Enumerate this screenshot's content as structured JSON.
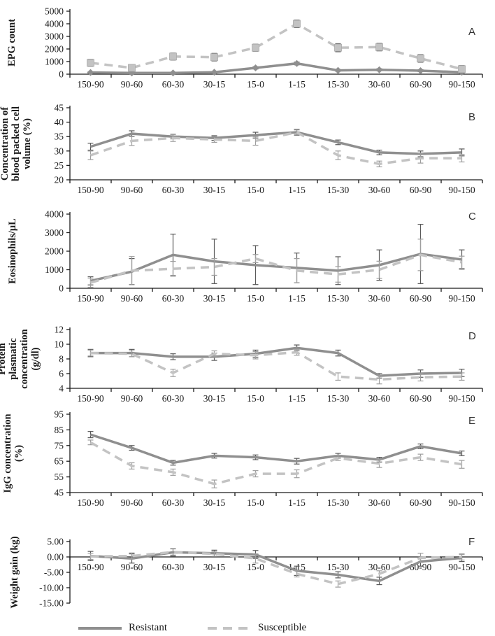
{
  "colors": {
    "resistant": "#8f8f8f",
    "susceptible": "#c3c3c3",
    "error_resistant": "#595959",
    "error_susceptible": "#9e9e9e",
    "axis": "#1a1a1a"
  },
  "legend": {
    "position": "bottom-left",
    "items": [
      {
        "label": "Resistant",
        "style": "solid"
      },
      {
        "label": "Susceptible",
        "style": "dashed"
      }
    ]
  },
  "chart_data": [
    {
      "type": "line",
      "panel": "A",
      "ylabel_lines": [
        "EPG count"
      ],
      "ylim": [
        0,
        5000
      ],
      "yticks": [
        0,
        1000,
        2000,
        3000,
        4000,
        5000
      ],
      "ytick_labels": [
        "0",
        "1000",
        "2000",
        "3000",
        "4000",
        "5000"
      ],
      "x_axis_at": null,
      "grid": false,
      "categories": [
        "150-90",
        "90-60",
        "60-30",
        "30-15",
        "15-0",
        "1-15",
        "15-30",
        "30-60",
        "60-90",
        "90-150"
      ],
      "series": [
        {
          "name": "Resistant",
          "color": "#8f8f8f",
          "error_color": "#595959",
          "dash": null,
          "marker": "diamond",
          "values": [
            130,
            100,
            100,
            150,
            500,
            850,
            300,
            350,
            280,
            150
          ],
          "errors": [
            60,
            60,
            50,
            60,
            90,
            110,
            70,
            80,
            70,
            60
          ]
        },
        {
          "name": "Susceptible",
          "color": "#c3c3c3",
          "error_color": "#595959",
          "dash": "12,8",
          "marker": "square",
          "values": [
            900,
            500,
            1400,
            1350,
            2100,
            4000,
            2100,
            2150,
            1250,
            400
          ],
          "errors": [
            280,
            260,
            280,
            300,
            280,
            300,
            320,
            300,
            300,
            280
          ]
        }
      ]
    },
    {
      "type": "line",
      "panel": "B",
      "ylabel_lines": [
        "Concentration of",
        "blood packed cell",
        "volume (%)"
      ],
      "ylim": [
        20,
        45
      ],
      "yticks": [
        20,
        25,
        30,
        35,
        40,
        45
      ],
      "ytick_labels": [
        "20",
        "25",
        "30",
        "35",
        "40",
        "45"
      ],
      "x_axis_at": null,
      "grid": false,
      "categories": [
        "150-90",
        "90-60",
        "60-30",
        "30-15",
        "15-0",
        "1-15",
        "15-30",
        "30-60",
        "60-90",
        "90-150"
      ],
      "series": [
        {
          "name": "Resistant",
          "color": "#8f8f8f",
          "error_color": "#595959",
          "dash": null,
          "marker": "none",
          "values": [
            31.5,
            36,
            35,
            34.5,
            35.5,
            36.5,
            33,
            29.5,
            29,
            29.5
          ],
          "errors": [
            1.2,
            1.0,
            0.8,
            0.8,
            1.0,
            1.0,
            0.8,
            0.8,
            1.0,
            1.2
          ]
        },
        {
          "name": "Susceptible",
          "color": "#c3c3c3",
          "error_color": "#9e9e9e",
          "dash": "12,8",
          "marker": "none",
          "values": [
            28.5,
            33.5,
            34.5,
            34,
            33.5,
            36.5,
            28.5,
            25.5,
            27.5,
            27.5
          ],
          "errors": [
            1.5,
            1.6,
            1.2,
            1.0,
            1.5,
            0.8,
            1.5,
            1.0,
            1.7,
            1.3
          ]
        }
      ]
    },
    {
      "type": "line",
      "panel": "C",
      "ylabel_lines": [
        "Eosinophils/μL"
      ],
      "ylim": [
        0,
        4000
      ],
      "yticks": [
        0,
        1000,
        2000,
        3000,
        4000
      ],
      "ytick_labels": [
        "0",
        "1000",
        "2000",
        "3000",
        "4000"
      ],
      "x_axis_at": null,
      "grid": false,
      "categories": [
        "150-90",
        "90-60",
        "60-30",
        "30-15",
        "15-0",
        "1-15",
        "15-30",
        "30-60",
        "60-90",
        "90-150"
      ],
      "series": [
        {
          "name": "Resistant",
          "color": "#8f8f8f",
          "error_color": "#595959",
          "dash": null,
          "marker": "none",
          "values": [
            400,
            900,
            1800,
            1450,
            1250,
            1100,
            950,
            1250,
            1850,
            1550
          ],
          "errors": [
            220,
            700,
            1120,
            1200,
            1050,
            800,
            750,
            820,
            1600,
            520
          ]
        },
        {
          "name": "Susceptible",
          "color": "#c3c3c3",
          "error_color": "#9e9e9e",
          "dash": "12,8",
          "marker": "none",
          "values": [
            300,
            950,
            1050,
            1150,
            1600,
            950,
            750,
            1000,
            1800,
            1400
          ],
          "errors": [
            250,
            760,
            400,
            450,
            220,
            650,
            420,
            460,
            850,
            330
          ]
        }
      ]
    },
    {
      "type": "line",
      "panel": "D",
      "ylabel_lines": [
        "Protein",
        "plasmatic",
        "concentration",
        "(g/dl)"
      ],
      "ylim": [
        4,
        12
      ],
      "yticks": [
        4,
        6,
        8,
        10,
        12
      ],
      "ytick_labels": [
        "4",
        "6",
        "8",
        "10",
        "12"
      ],
      "x_axis_at": null,
      "grid": false,
      "categories": [
        "150-90",
        "90-60",
        "60-30",
        "30-15",
        "15-0",
        "1-15",
        "15-30",
        "30-60",
        "60-90",
        "90-150"
      ],
      "series": [
        {
          "name": "Resistant",
          "color": "#8f8f8f",
          "error_color": "#595959",
          "dash": null,
          "marker": "none",
          "values": [
            8.8,
            8.8,
            8.3,
            8.3,
            8.7,
            9.5,
            8.8,
            5.7,
            6.0,
            6.1
          ],
          "errors": [
            0.5,
            0.5,
            0.4,
            0.5,
            0.5,
            0.4,
            0.4,
            0.3,
            0.5,
            0.5
          ]
        },
        {
          "name": "Susceptible",
          "color": "#c3c3c3",
          "error_color": "#9e9e9e",
          "dash": "12,8",
          "marker": "none",
          "values": [
            8.8,
            8.7,
            6.1,
            8.7,
            8.5,
            8.9,
            5.6,
            5.2,
            5.5,
            5.6
          ],
          "errors": [
            0.4,
            0.4,
            0.5,
            0.4,
            0.5,
            0.4,
            0.5,
            0.6,
            0.5,
            0.5
          ]
        }
      ]
    },
    {
      "type": "line",
      "panel": "E",
      "ylabel_lines": [
        "IgG concentration",
        "(%)"
      ],
      "ylim": [
        45,
        95
      ],
      "yticks": [
        45,
        55,
        65,
        75,
        85,
        95
      ],
      "ytick_labels": [
        "45",
        "55",
        "65",
        "75",
        "85",
        "95"
      ],
      "x_axis_at": null,
      "grid": false,
      "categories": [
        "150-90",
        "90-60",
        "60-30",
        "30-15",
        "15-0",
        "1-15",
        "15-30",
        "30-60",
        "60-90",
        "90-150"
      ],
      "series": [
        {
          "name": "Resistant",
          "color": "#8f8f8f",
          "error_color": "#595959",
          "dash": null,
          "marker": "none",
          "values": [
            82,
            73.5,
            64,
            68.5,
            67.5,
            65,
            68.5,
            66,
            74.5,
            70
          ],
          "errors": [
            2.0,
            1.5,
            1.5,
            1.5,
            1.5,
            1.8,
            1.5,
            1.5,
            1.5,
            1.5
          ]
        },
        {
          "name": "Susceptible",
          "color": "#c3c3c3",
          "error_color": "#9e9e9e",
          "dash": "12,8",
          "marker": "none",
          "values": [
            77,
            62,
            58,
            50.5,
            57,
            57,
            67,
            63.5,
            67.5,
            63
          ],
          "errors": [
            1.5,
            2.0,
            2.0,
            2.5,
            2.0,
            2.5,
            1.5,
            2.5,
            2.0,
            2.5
          ]
        }
      ]
    },
    {
      "type": "line",
      "panel": "F",
      "ylabel_lines": [
        "Weight gain (kg)"
      ],
      "ylim": [
        -15,
        5
      ],
      "yticks": [
        -15,
        -10,
        -5,
        0,
        5
      ],
      "ytick_labels": [
        "-15.00",
        "-10.00",
        "-5.00",
        "0.00",
        "5.00"
      ],
      "x_axis_at": 0,
      "grid": false,
      "categories": [
        "150-90",
        "90-60",
        "60-30",
        "30-15",
        "15-0",
        "1-15",
        "15-30",
        "30-60",
        "60-90",
        "90-150"
      ],
      "series": [
        {
          "name": "Resistant",
          "color": "#8f8f8f",
          "error_color": "#595959",
          "dash": null,
          "marker": "none",
          "values": [
            0.3,
            -0.5,
            1.5,
            1.2,
            0.8,
            -4.5,
            -5.8,
            -7.8,
            -1.5,
            -0.3
          ],
          "errors": [
            1.5,
            1.5,
            1.2,
            1.0,
            1.3,
            1.5,
            1.0,
            1.2,
            1.5,
            1.2
          ]
        },
        {
          "name": "Susceptible",
          "color": "#c3c3c3",
          "error_color": "#9e9e9e",
          "dash": "12,8",
          "marker": "none",
          "values": [
            0.2,
            0.3,
            1.6,
            1.0,
            -0.5,
            -5.5,
            -8.8,
            -5.5,
            -0.3,
            0.0
          ],
          "errors": [
            1.0,
            1.0,
            1.0,
            0.8,
            1.5,
            1.0,
            1.0,
            1.0,
            1.5,
            1.0
          ]
        }
      ]
    }
  ]
}
